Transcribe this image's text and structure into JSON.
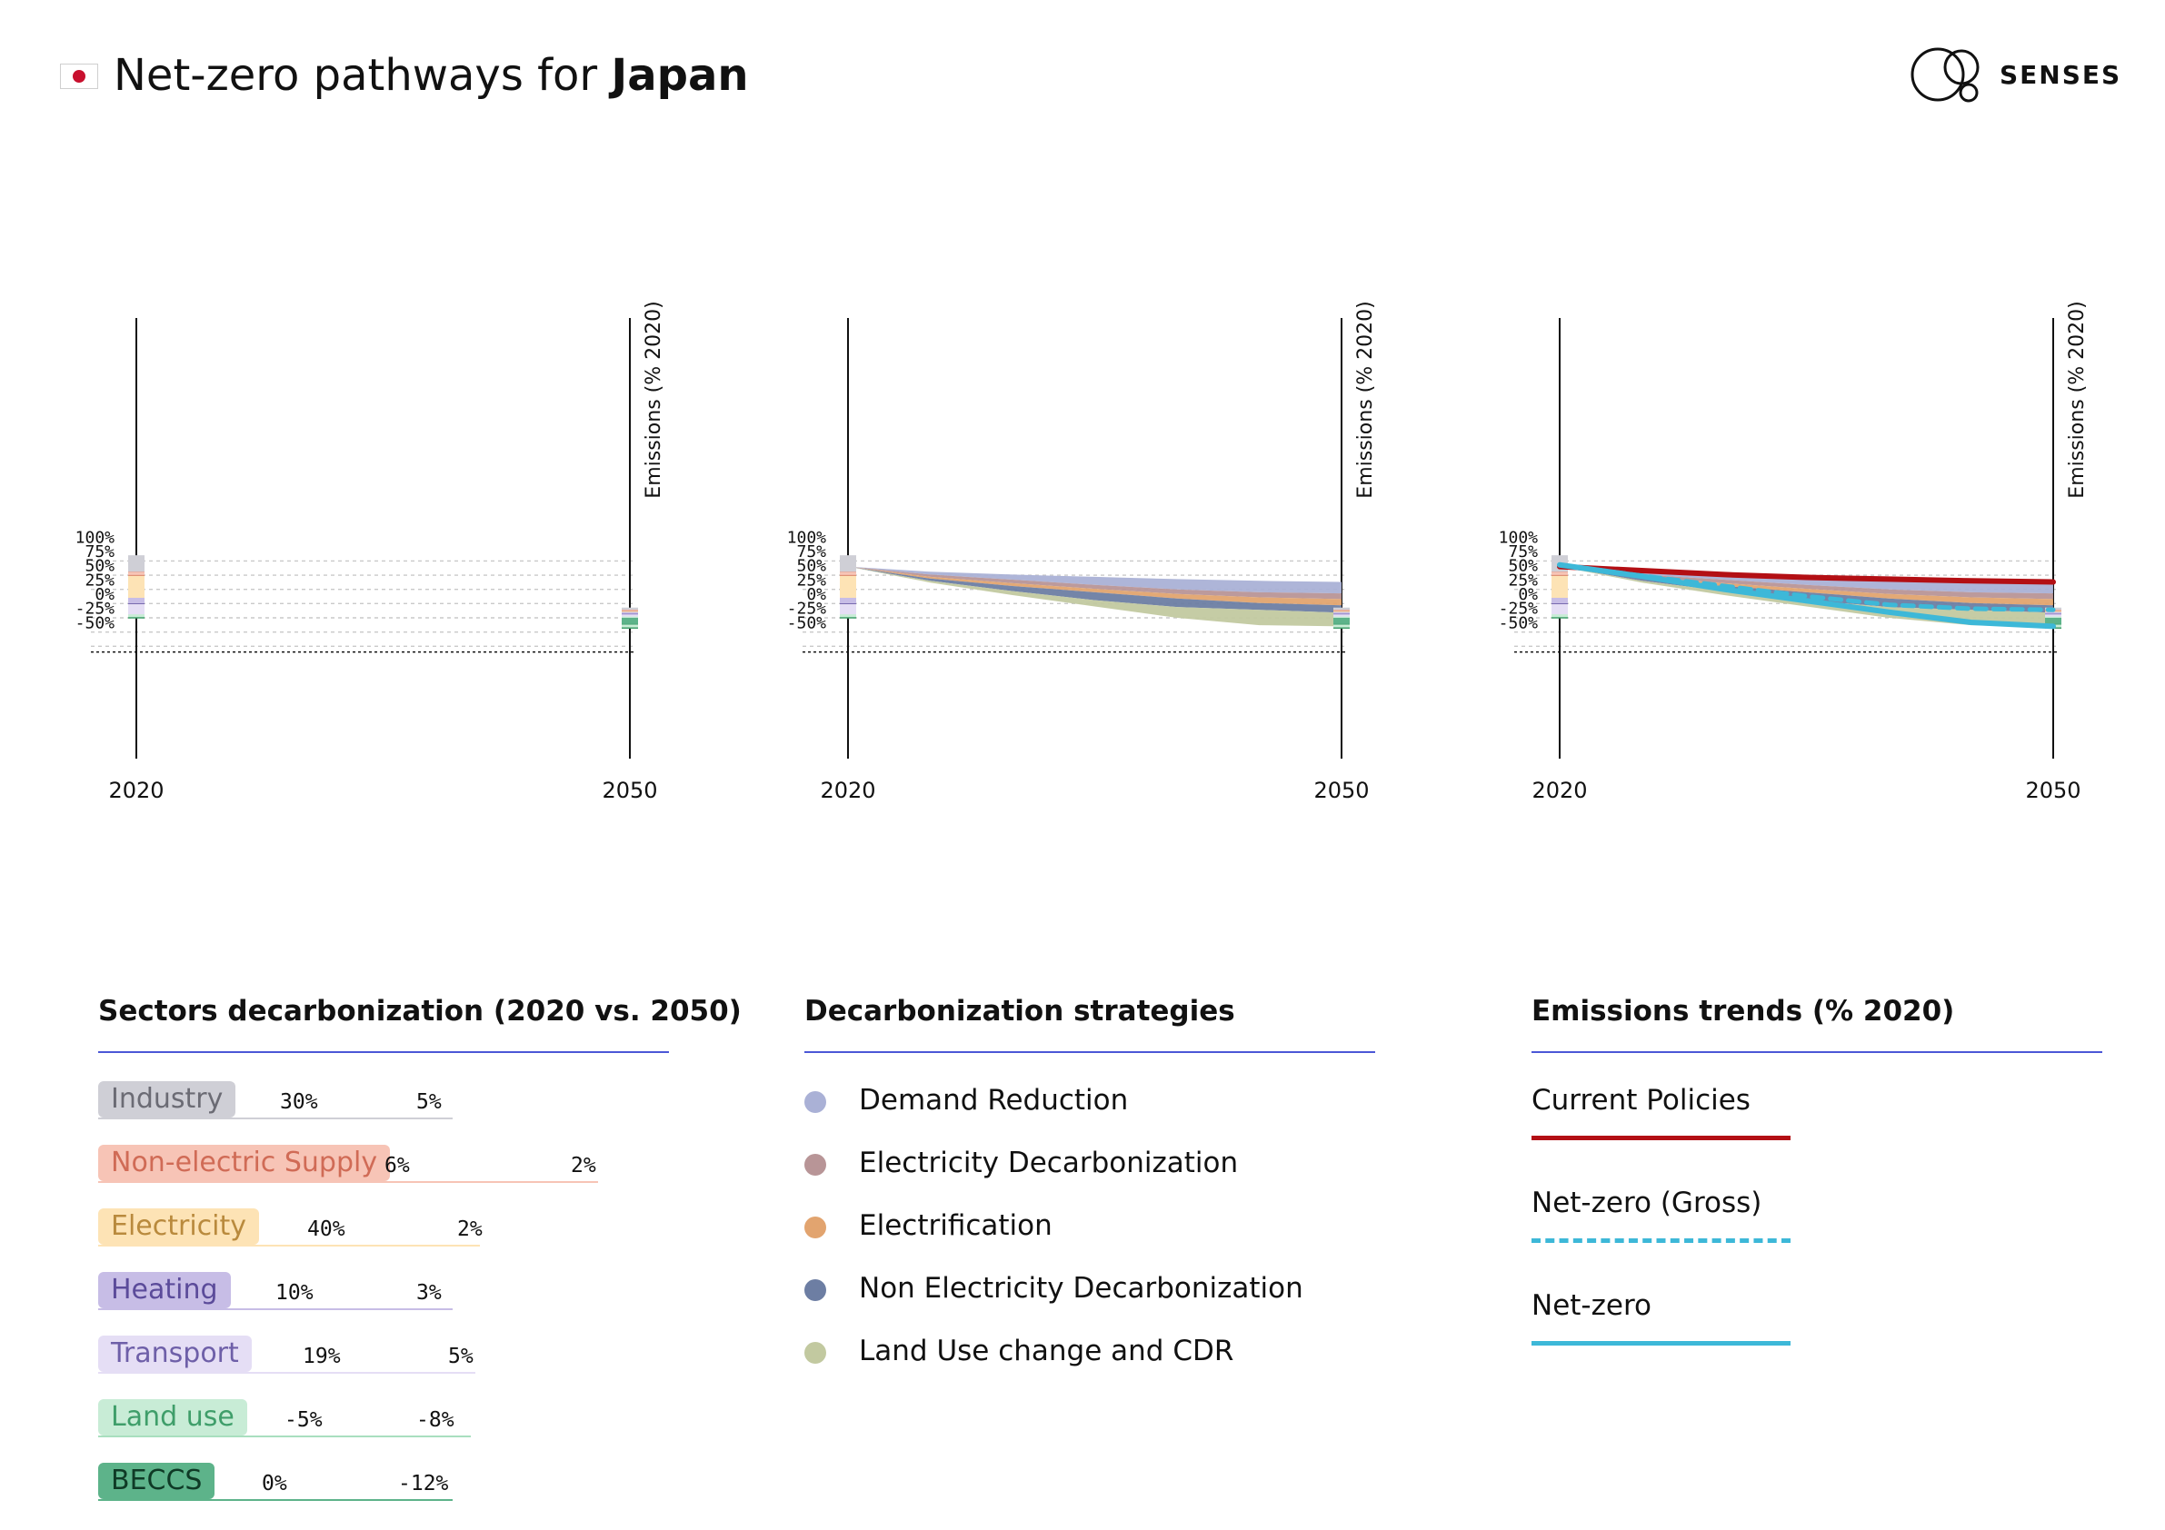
{
  "header": {
    "title_prefix": "Net-zero pathways for ",
    "country": "Japan",
    "brand": "SENSES",
    "flag_icon": "japan-flag-icon",
    "logo_icon": "senses-logo-icon"
  },
  "colors": {
    "industry": "#cfcfd6",
    "non_electric_supply": "#f7c4b6",
    "electricity": "#fde3b5",
    "heating": "#c7bde6",
    "transport": "#e5def5",
    "land_use": "#c8ecd6",
    "beccs": "#5db38a",
    "demand_reduction": "#aab1d6",
    "electricity_decarbonization": "#b89597",
    "electrification": "#e2a46f",
    "non_electricity_decarbonization": "#6d7ea3",
    "land_use_cdr": "#c2c9a0",
    "current_policies": "#b30f14",
    "net_zero": "#3db8d8",
    "accent_rule": "#4b57d6"
  },
  "chart_data": [
    {
      "type": "area",
      "panel": "sectors",
      "years_axis": [
        "2020",
        "2050"
      ],
      "ylabel": "Emissions (% 2020)",
      "y_ticks": [
        "100%",
        "75%",
        "50%",
        "25%",
        "0%",
        "-25%",
        "-50%"
      ],
      "ylim": [
        -60,
        110
      ],
      "grid": true,
      "stacked_2020": {
        "Industry": 30,
        "Non-electric Supply": 6,
        "Electricity": 40,
        "Heating": 10,
        "Transport": 19,
        "Land use": -5,
        "BECCS": 0
      },
      "stacked_2050": {
        "Industry": 5,
        "Non-electric Supply": 2,
        "Electricity": 2,
        "Heating": 3,
        "Transport": 5,
        "Land use": -8,
        "BECCS": -12
      }
    },
    {
      "type": "area",
      "panel": "strategies",
      "years_axis": [
        "2020",
        "2050"
      ],
      "ylabel": "Emissions (% 2020)",
      "y_ticks": [
        "100%",
        "75%",
        "50%",
        "25%",
        "0%",
        "-25%",
        "-50%"
      ],
      "ylim": [
        -60,
        110
      ],
      "grid": true,
      "x": [
        2020,
        2025,
        2030,
        2035,
        2040,
        2045,
        2050
      ],
      "boundaries": {
        "top": [
          100,
          91,
          86,
          82,
          78,
          75,
          73
        ],
        "after_demand_reduction": [
          100,
          86,
          77,
          68,
          60,
          55,
          53
        ],
        "after_electricity_decarbonization": [
          100,
          82,
          71,
          61,
          52,
          46,
          43
        ],
        "after_electrification": [
          100,
          79,
          66,
          55,
          44,
          36,
          32
        ],
        "after_non_electricity_decarbonization": [
          100,
          75,
          57,
          41,
          29,
          24,
          19
        ],
        "after_land_use_cdr": [
          100,
          72,
          50,
          30,
          10,
          -3,
          -5
        ]
      }
    },
    {
      "type": "line",
      "panel": "trends",
      "years_axis": [
        "2020",
        "2050"
      ],
      "ylabel": "Emissions (% 2020)",
      "y_ticks": [
        "100%",
        "75%",
        "50%",
        "25%",
        "0%",
        "-25%",
        "-50%"
      ],
      "ylim": [
        -60,
        110
      ],
      "grid": true,
      "x": [
        2020,
        2025,
        2030,
        2035,
        2040,
        2045,
        2050
      ],
      "series": [
        {
          "name": "Current Policies",
          "values": [
            100,
            93,
            86,
            81,
            78,
            75,
            73
          ]
        },
        {
          "name": "Net-zero (Gross)",
          "values": [
            103,
            84,
            66,
            48,
            33,
            26,
            24
          ]
        },
        {
          "name": "Net-zero",
          "values": [
            103,
            83,
            60,
            40,
            20,
            2,
            -5
          ]
        }
      ]
    }
  ],
  "sectors_legend": {
    "title": "Sectors decarbonization (2020 vs. 2050)",
    "rows": [
      {
        "label": "Industry",
        "v2020": "30%",
        "v2050": "5%",
        "bg": "#cfcfd6",
        "fg": "#6b6b74",
        "line": "#cfcfd6"
      },
      {
        "label": "Non-electric Supply",
        "v2020": "6%",
        "v2050": "2%",
        "bg": "#f7c4b6",
        "fg": "#d06b56",
        "line": "#f7c4b6"
      },
      {
        "label": "Electricity",
        "v2020": "40%",
        "v2050": "2%",
        "bg": "#fde3b5",
        "fg": "#b98a3d",
        "line": "#fde3b5"
      },
      {
        "label": "Heating",
        "v2020": "10%",
        "v2050": "3%",
        "bg": "#c7bde6",
        "fg": "#5b4b9a",
        "line": "#c7bde6"
      },
      {
        "label": "Transport",
        "v2020": "19%",
        "v2050": "5%",
        "bg": "#e5def5",
        "fg": "#6e5fa8",
        "line": "#e5def5"
      },
      {
        "label": "Land use",
        "v2020": "-5%",
        "v2050": "-8%",
        "bg": "#c8ecd6",
        "fg": "#3f9e6a",
        "line": "#a9dfbf"
      },
      {
        "label": "BECCS",
        "v2020": "0%",
        "v2050": "-12%",
        "bg": "#5db38a",
        "fg": "#0f3a26",
        "line": "#5db38a"
      }
    ]
  },
  "strategies_legend": {
    "title": "Decarbonization strategies",
    "items": [
      {
        "label": "Demand Reduction",
        "color": "#aab1d6"
      },
      {
        "label": "Electricity Decarbonization",
        "color": "#b89597"
      },
      {
        "label": "Electrification",
        "color": "#e2a46f"
      },
      {
        "label": "Non Electricity Decarbonization",
        "color": "#6d7ea3"
      },
      {
        "label": "Land Use change and CDR",
        "color": "#c2c9a0"
      }
    ]
  },
  "trends_legend": {
    "title": "Emissions trends (% 2020)",
    "items": [
      {
        "label": "Current Policies",
        "color": "#b30f14",
        "style": "solid"
      },
      {
        "label": "Net-zero (Gross)",
        "color": "#3db8d8",
        "style": "dashed"
      },
      {
        "label": "Net-zero",
        "color": "#3db8d8",
        "style": "solid"
      }
    ]
  }
}
